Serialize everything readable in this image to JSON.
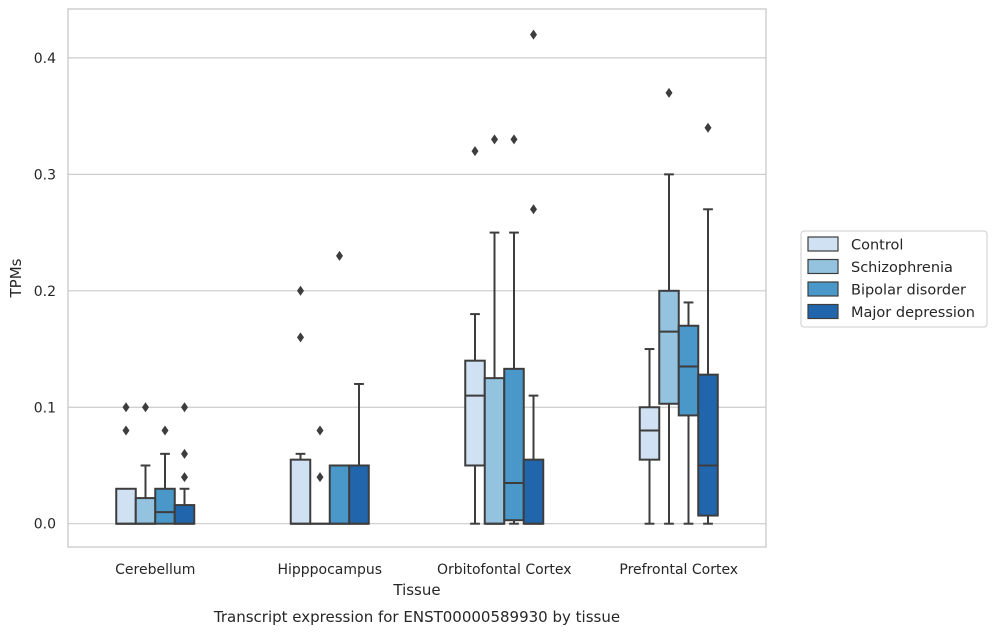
{
  "chart_data": {
    "type": "boxplot",
    "title": "Transcript expression for ENST00000589930 by tissue",
    "xlabel": "Tissue",
    "ylabel": "TPMs",
    "ylim": [
      -0.02,
      0.442
    ],
    "yticks": [
      0.0,
      0.1,
      0.2,
      0.3,
      0.4
    ],
    "ytick_labels": [
      "0.0",
      "0.1",
      "0.2",
      "0.3",
      "0.4"
    ],
    "grid": "horizontal",
    "legend_position": "right",
    "categories": [
      "Cerebellum",
      "Hipppocampus",
      "Orbitofontal Cortex",
      "Prefrontal Cortex"
    ],
    "series": [
      {
        "name": "Control",
        "color": "#cfe1f2",
        "boxes": [
          {
            "q1": 0.0,
            "median": 0.0,
            "q3": 0.03,
            "whislo": 0.0,
            "whishi": 0.03,
            "fliers": [
              0.08,
              0.1
            ]
          },
          {
            "q1": 0.0,
            "median": 0.0,
            "q3": 0.055,
            "whislo": 0.0,
            "whishi": 0.06,
            "fliers": [
              0.16,
              0.2
            ]
          },
          {
            "q1": 0.05,
            "median": 0.11,
            "q3": 0.14,
            "whislo": 0.0,
            "whishi": 0.18,
            "fliers": [
              0.32
            ]
          },
          {
            "q1": 0.055,
            "median": 0.08,
            "q3": 0.1,
            "whislo": 0.0,
            "whishi": 0.15,
            "fliers": []
          }
        ]
      },
      {
        "name": "Schizophrenia",
        "color": "#93c3df",
        "boxes": [
          {
            "q1": 0.0,
            "median": 0.0,
            "q3": 0.022,
            "whislo": 0.0,
            "whishi": 0.05,
            "fliers": [
              0.1
            ]
          },
          {
            "q1": 0.0,
            "median": 0.0,
            "q3": 0.0,
            "whislo": 0.0,
            "whishi": 0.0,
            "fliers": [
              0.04,
              0.08
            ]
          },
          {
            "q1": 0.0,
            "median": 0.0,
            "q3": 0.125,
            "whislo": 0.0,
            "whishi": 0.25,
            "fliers": [
              0.33
            ]
          },
          {
            "q1": 0.103,
            "median": 0.165,
            "q3": 0.2,
            "whislo": 0.0,
            "whishi": 0.3,
            "fliers": [
              0.37
            ]
          }
        ]
      },
      {
        "name": "Bipolar disorder",
        "color": "#4a98c9",
        "boxes": [
          {
            "q1": 0.0,
            "median": 0.01,
            "q3": 0.03,
            "whislo": 0.0,
            "whishi": 0.06,
            "fliers": [
              0.08
            ]
          },
          {
            "q1": 0.0,
            "median": 0.0,
            "q3": 0.05,
            "whislo": 0.0,
            "whishi": 0.05,
            "fliers": [
              0.23
            ]
          },
          {
            "q1": 0.003,
            "median": 0.035,
            "q3": 0.133,
            "whislo": 0.0,
            "whishi": 0.25,
            "fliers": [
              0.33
            ]
          },
          {
            "q1": 0.093,
            "median": 0.135,
            "q3": 0.17,
            "whislo": 0.0,
            "whishi": 0.19,
            "fliers": []
          }
        ]
      },
      {
        "name": "Major depression",
        "color": "#2166ac",
        "boxes": [
          {
            "q1": 0.0,
            "median": 0.0,
            "q3": 0.016,
            "whislo": 0.0,
            "whishi": 0.03,
            "fliers": [
              0.04,
              0.06,
              0.1
            ]
          },
          {
            "q1": 0.0,
            "median": 0.0,
            "q3": 0.05,
            "whislo": 0.0,
            "whishi": 0.12,
            "fliers": []
          },
          {
            "q1": 0.0,
            "median": 0.0,
            "q3": 0.055,
            "whislo": 0.0,
            "whishi": 0.11,
            "fliers": [
              0.27,
              0.42
            ]
          },
          {
            "q1": 0.007,
            "median": 0.05,
            "q3": 0.128,
            "whislo": 0.0,
            "whishi": 0.27,
            "fliers": [
              0.34
            ]
          }
        ]
      }
    ],
    "colors": {
      "line": "#3d3d3d",
      "grid": "#cccccc",
      "frame": "#c8c8c8",
      "flier": "#3d3d3d"
    }
  }
}
